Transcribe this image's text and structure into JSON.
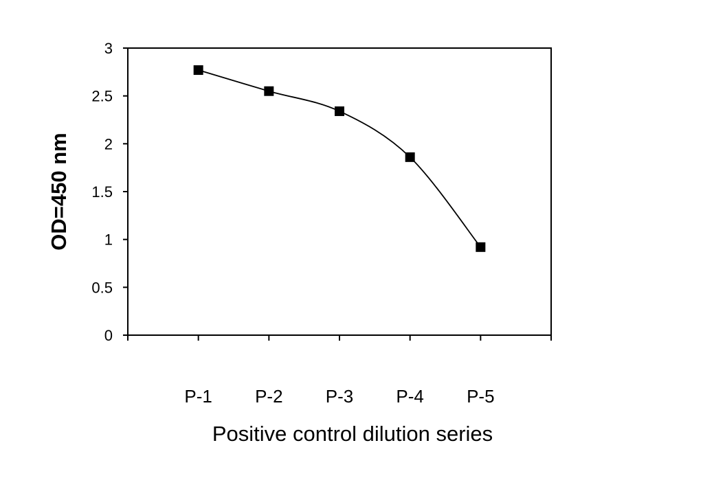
{
  "chart_data": {
    "type": "line",
    "title": "",
    "xlabel": "Positive control dilution series",
    "ylabel": "OD=450 nm",
    "categories": [
      "P-1",
      "P-2",
      "P-3",
      "P-4",
      "P-5"
    ],
    "series": [
      {
        "values": [
          2.77,
          2.55,
          2.34,
          1.86,
          0.92
        ]
      }
    ],
    "ylim": [
      0,
      3
    ],
    "yticks": [
      "0",
      "0.5",
      "1",
      "1.5",
      "2",
      "2.5",
      "3"
    ],
    "grid": false,
    "legend": "none",
    "marker": "square",
    "line_color": "#000000",
    "marker_color": "#000000"
  }
}
